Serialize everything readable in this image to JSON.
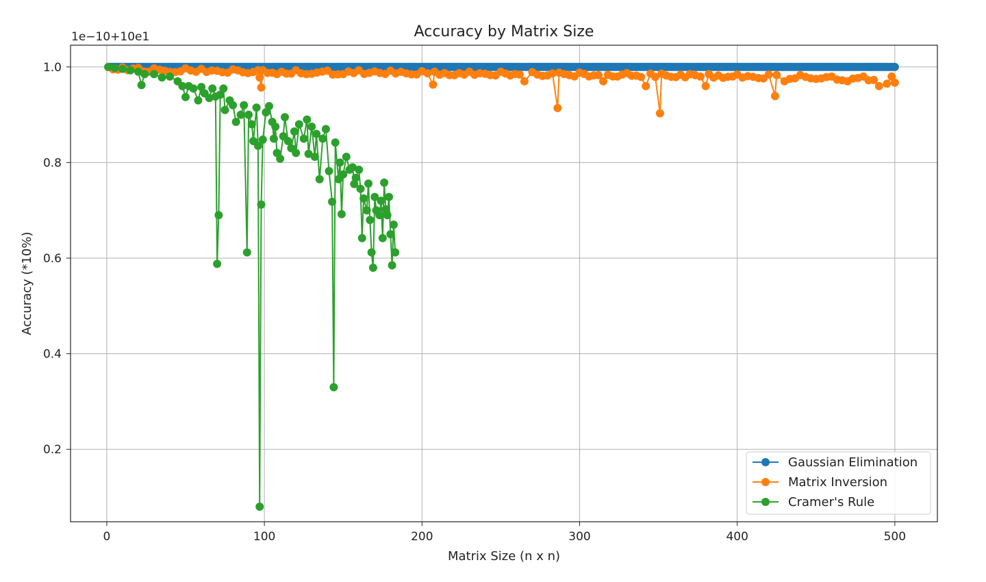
{
  "chart_data": {
    "type": "line",
    "title": "Accuracy by Matrix Size",
    "xlabel": "Matrix Size (n x n)",
    "ylabel": "Accuracy (*10%)",
    "offset_text": "1e−10+10e1",
    "xlim": [
      -23,
      527
    ],
    "ylim": [
      0.0485,
      1.0455
    ],
    "xticks": [
      0,
      100,
      200,
      300,
      400,
      500
    ],
    "xtick_labels": [
      "0",
      "100",
      "200",
      "300",
      "400",
      "500"
    ],
    "yticks": [
      0.2,
      0.4,
      0.6,
      0.8,
      1.0
    ],
    "ytick_labels": [
      "0.2",
      "0.4",
      "0.6",
      "0.8",
      "1.0"
    ],
    "grid": true,
    "legend_position": "lower-right",
    "series": [
      {
        "name": "Gaussian Elimination",
        "color": "#1f77b4",
        "x_start": 1,
        "x_end": 500,
        "value": 1.0
      },
      {
        "name": "Matrix Inversion",
        "color": "#ff7f0e",
        "points": [
          [
            1,
            1.0
          ],
          [
            10,
            0.999
          ],
          [
            20,
            0.998
          ],
          [
            30,
            0.997
          ],
          [
            50,
            0.997
          ],
          [
            60,
            0.996
          ],
          [
            80,
            0.995
          ],
          [
            96,
            0.993
          ],
          [
            97,
            0.978
          ],
          [
            98,
            0.957
          ],
          [
            99,
            0.993
          ],
          [
            120,
            0.993
          ],
          [
            140,
            0.992
          ],
          [
            150,
            0.985
          ],
          [
            160,
            0.993
          ],
          [
            180,
            0.992
          ],
          [
            200,
            0.991
          ],
          [
            207,
            0.963
          ],
          [
            208,
            0.99
          ],
          [
            230,
            0.99
          ],
          [
            250,
            0.99
          ],
          [
            265,
            0.97
          ],
          [
            270,
            0.989
          ],
          [
            286,
            0.914
          ],
          [
            287,
            0.988
          ],
          [
            300,
            0.988
          ],
          [
            315,
            0.97
          ],
          [
            330,
            0.987
          ],
          [
            342,
            0.96
          ],
          [
            345,
            0.986
          ],
          [
            351,
            0.903
          ],
          [
            352,
            0.986
          ],
          [
            370,
            0.985
          ],
          [
            380,
            0.96
          ],
          [
            382,
            0.985
          ],
          [
            400,
            0.984
          ],
          [
            420,
            0.984
          ],
          [
            424,
            0.939
          ],
          [
            425,
            0.983
          ],
          [
            430,
            0.97
          ],
          [
            440,
            0.983
          ],
          [
            460,
            0.98
          ],
          [
            470,
            0.97
          ],
          [
            480,
            0.98
          ],
          [
            490,
            0.96
          ],
          [
            495,
            0.965
          ],
          [
            498,
            0.98
          ],
          [
            500,
            0.967
          ]
        ]
      },
      {
        "name": "Cramer's Rule",
        "color": "#2ca02c",
        "points": [
          [
            1,
            1.0
          ],
          [
            5,
            0.998
          ],
          [
            10,
            0.996
          ],
          [
            15,
            0.993
          ],
          [
            20,
            0.99
          ],
          [
            22,
            0.962
          ],
          [
            24,
            0.985
          ],
          [
            30,
            0.985
          ],
          [
            35,
            0.978
          ],
          [
            40,
            0.98
          ],
          [
            45,
            0.97
          ],
          [
            48,
            0.96
          ],
          [
            50,
            0.937
          ],
          [
            52,
            0.96
          ],
          [
            55,
            0.955
          ],
          [
            58,
            0.93
          ],
          [
            60,
            0.958
          ],
          [
            62,
            0.945
          ],
          [
            65,
            0.935
          ],
          [
            67,
            0.955
          ],
          [
            69,
            0.938
          ],
          [
            70,
            0.588
          ],
          [
            71,
            0.69
          ],
          [
            72,
            0.942
          ],
          [
            74,
            0.955
          ],
          [
            75,
            0.91
          ],
          [
            78,
            0.93
          ],
          [
            80,
            0.92
          ],
          [
            82,
            0.885
          ],
          [
            85,
            0.9
          ],
          [
            87,
            0.92
          ],
          [
            89,
            0.612
          ],
          [
            90,
            0.9
          ],
          [
            92,
            0.88
          ],
          [
            93,
            0.845
          ],
          [
            95,
            0.915
          ],
          [
            96,
            0.835
          ],
          [
            97,
            0.08
          ],
          [
            98,
            0.712
          ],
          [
            99,
            0.848
          ],
          [
            101,
            0.905
          ],
          [
            103,
            0.918
          ],
          [
            105,
            0.885
          ],
          [
            106,
            0.85
          ],
          [
            107,
            0.875
          ],
          [
            108,
            0.82
          ],
          [
            110,
            0.808
          ],
          [
            112,
            0.855
          ],
          [
            113,
            0.895
          ],
          [
            115,
            0.845
          ],
          [
            117,
            0.83
          ],
          [
            119,
            0.865
          ],
          [
            120,
            0.82
          ],
          [
            122,
            0.88
          ],
          [
            125,
            0.85
          ],
          [
            127,
            0.89
          ],
          [
            128,
            0.818
          ],
          [
            130,
            0.875
          ],
          [
            132,
            0.812
          ],
          [
            133,
            0.86
          ],
          [
            135,
            0.765
          ],
          [
            137,
            0.85
          ],
          [
            139,
            0.87
          ],
          [
            141,
            0.782
          ],
          [
            143,
            0.718
          ],
          [
            144,
            0.33
          ],
          [
            145,
            0.842
          ],
          [
            147,
            0.765
          ],
          [
            148,
            0.8
          ],
          [
            149,
            0.692
          ],
          [
            150,
            0.775
          ],
          [
            152,
            0.812
          ],
          [
            154,
            0.785
          ],
          [
            156,
            0.79
          ],
          [
            157,
            0.755
          ],
          [
            158,
            0.768
          ],
          [
            160,
            0.785
          ],
          [
            161,
            0.745
          ],
          [
            162,
            0.642
          ],
          [
            163,
            0.725
          ],
          [
            165,
            0.7
          ],
          [
            166,
            0.756
          ],
          [
            167,
            0.68
          ],
          [
            168,
            0.612
          ],
          [
            169,
            0.58
          ],
          [
            170,
            0.728
          ],
          [
            171,
            0.7
          ],
          [
            173,
            0.69
          ],
          [
            174,
            0.72
          ],
          [
            175,
            0.642
          ],
          [
            176,
            0.758
          ],
          [
            177,
            0.702
          ],
          [
            178,
            0.69
          ],
          [
            179,
            0.728
          ],
          [
            180,
            0.65
          ],
          [
            181,
            0.585
          ],
          [
            182,
            0.67
          ],
          [
            183,
            0.612
          ]
        ]
      }
    ]
  }
}
